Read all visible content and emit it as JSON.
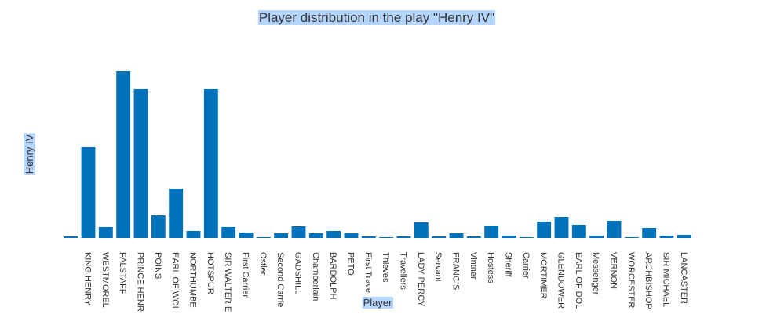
{
  "chart_data": {
    "type": "bar",
    "title": "Player distribution in the play \"Henry IV\"",
    "x_label": "Player",
    "y_label": "Henry IV",
    "categories": [
      null,
      "KING HENRY",
      "WESTMOREL",
      "FALSTAFF",
      "PRINCE HENR",
      "POINS",
      "EARL OF WOI",
      "NORTHUMBE",
      "HOTSPUR",
      "SIR WALTER E",
      "First Carrier",
      "Ostler",
      "Second Carrie",
      "GADSHILL",
      "Chamberlain",
      "BARDOLPH",
      "PETO",
      "First Trave",
      "Thieves",
      "Travellers",
      "LADY PERCY",
      "Servant",
      "FRANCIS",
      "Vintner",
      "Hostess",
      "Sheriff",
      "Carrier",
      "MORTIMER",
      "GLENDOWER",
      "EARL OF DOL",
      "Messenger",
      "VERNON",
      "WORCESTER",
      "ARCHBISHOP",
      "SIR MICHAEL",
      "LANCASTER"
    ],
    "values": [
      2,
      116,
      14,
      213,
      190,
      29,
      63,
      9,
      190,
      14,
      7,
      1,
      6,
      15,
      6,
      9,
      6,
      2,
      1,
      2,
      20,
      2,
      6,
      2,
      16,
      3,
      1,
      21,
      27,
      17,
      3,
      22,
      1,
      13,
      3,
      4
    ],
    "color": "#0072bc",
    "ylim": [
      0,
      220
    ]
  }
}
